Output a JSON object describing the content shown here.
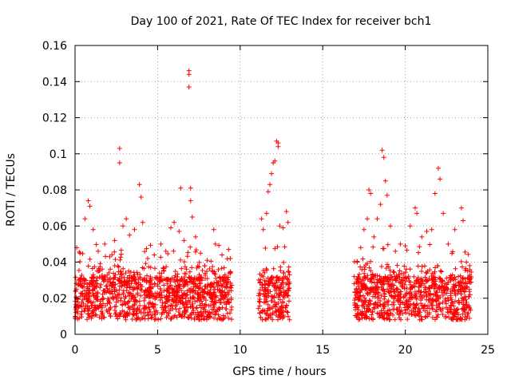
{
  "chart_data": {
    "type": "scatter",
    "title": "Day 100 of 2021, Rate Of TEC Index for receiver bch1",
    "xlabel": "GPS time / hours",
    "ylabel": "ROTI / TECUs",
    "xlim": [
      0,
      25
    ],
    "ylim": [
      0,
      0.16
    ],
    "xticks": [
      "0",
      "5",
      "10",
      "15",
      "20",
      "25"
    ],
    "yticks": [
      "0",
      "0.02",
      "0.04",
      "0.06",
      "0.08",
      "0.1",
      "0.12",
      "0.14",
      "0.16"
    ],
    "grid": true,
    "marker": "plus",
    "color": "#ff0000",
    "series": [
      {
        "segments": [
          [
            0,
            9.5
          ],
          [
            11.1,
            13.0
          ],
          [
            16.9,
            24.0
          ]
        ],
        "points": [
          [
            0.1,
            0.048
          ],
          [
            0.3,
            0.045
          ],
          [
            0.6,
            0.064
          ],
          [
            0.8,
            0.074
          ],
          [
            0.9,
            0.071
          ],
          [
            1.1,
            0.058
          ],
          [
            1.4,
            0.046
          ],
          [
            1.8,
            0.05
          ],
          [
            2.1,
            0.043
          ],
          [
            2.4,
            0.052
          ],
          [
            2.7,
            0.103
          ],
          [
            2.7,
            0.095
          ],
          [
            2.9,
            0.06
          ],
          [
            3.1,
            0.064
          ],
          [
            3.3,
            0.055
          ],
          [
            3.6,
            0.058
          ],
          [
            3.9,
            0.083
          ],
          [
            4.0,
            0.076
          ],
          [
            4.1,
            0.062
          ],
          [
            4.4,
            0.042
          ],
          [
            4.8,
            0.044
          ],
          [
            5.2,
            0.05
          ],
          [
            5.5,
            0.046
          ],
          [
            5.8,
            0.059
          ],
          [
            6.0,
            0.062
          ],
          [
            6.3,
            0.057
          ],
          [
            6.4,
            0.081
          ],
          [
            6.6,
            0.052
          ],
          [
            6.9,
            0.146
          ],
          [
            6.9,
            0.144
          ],
          [
            6.9,
            0.137
          ],
          [
            7.0,
            0.081
          ],
          [
            7.0,
            0.074
          ],
          [
            7.1,
            0.065
          ],
          [
            7.3,
            0.054
          ],
          [
            7.6,
            0.045
          ],
          [
            8.0,
            0.041
          ],
          [
            8.4,
            0.058
          ],
          [
            8.5,
            0.05
          ],
          [
            8.9,
            0.044
          ],
          [
            9.3,
            0.047
          ],
          [
            9.4,
            0.042
          ],
          [
            11.3,
            0.064
          ],
          [
            11.4,
            0.058
          ],
          [
            11.6,
            0.067
          ],
          [
            11.7,
            0.079
          ],
          [
            11.8,
            0.083
          ],
          [
            11.9,
            0.089
          ],
          [
            12.0,
            0.095
          ],
          [
            12.1,
            0.096
          ],
          [
            12.2,
            0.107
          ],
          [
            12.3,
            0.106
          ],
          [
            12.3,
            0.104
          ],
          [
            12.4,
            0.06
          ],
          [
            12.6,
            0.059
          ],
          [
            12.8,
            0.068
          ],
          [
            12.9,
            0.062
          ],
          [
            17.1,
            0.04
          ],
          [
            17.3,
            0.048
          ],
          [
            17.5,
            0.058
          ],
          [
            17.7,
            0.064
          ],
          [
            17.8,
            0.08
          ],
          [
            17.9,
            0.078
          ],
          [
            18.1,
            0.054
          ],
          [
            18.3,
            0.064
          ],
          [
            18.5,
            0.072
          ],
          [
            18.6,
            0.102
          ],
          [
            18.7,
            0.098
          ],
          [
            18.8,
            0.085
          ],
          [
            18.9,
            0.077
          ],
          [
            19.1,
            0.06
          ],
          [
            19.4,
            0.046
          ],
          [
            19.7,
            0.05
          ],
          [
            20.0,
            0.049
          ],
          [
            20.3,
            0.06
          ],
          [
            20.6,
            0.07
          ],
          [
            20.7,
            0.067
          ],
          [
            21.0,
            0.054
          ],
          [
            21.3,
            0.057
          ],
          [
            21.6,
            0.058
          ],
          [
            21.8,
            0.078
          ],
          [
            22.0,
            0.092
          ],
          [
            22.1,
            0.086
          ],
          [
            22.3,
            0.067
          ],
          [
            22.6,
            0.05
          ],
          [
            23.0,
            0.058
          ],
          [
            23.4,
            0.07
          ],
          [
            23.5,
            0.063
          ],
          [
            23.7,
            0.04
          ],
          [
            23.9,
            0.038
          ]
        ]
      }
    ]
  }
}
